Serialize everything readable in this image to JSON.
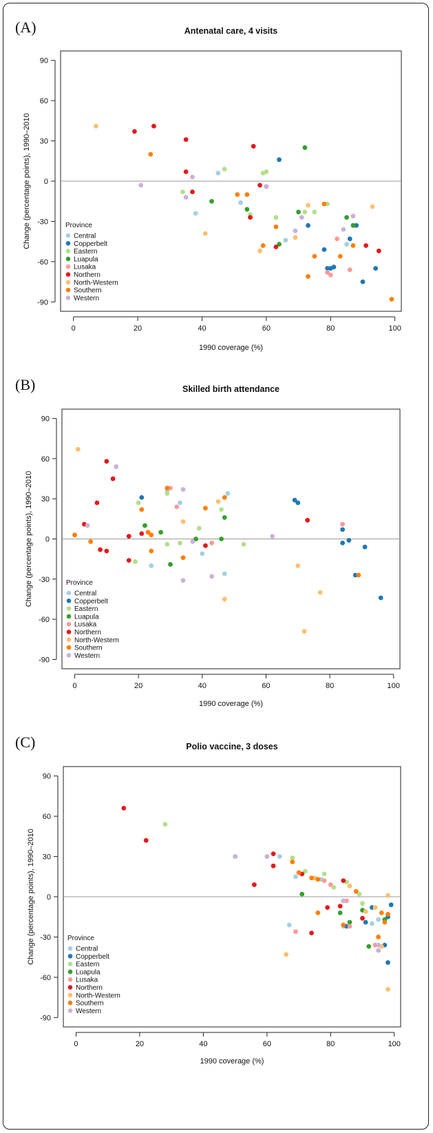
{
  "legend_title": "Province",
  "provinces": [
    {
      "name": "Central",
      "color": "#a6cee3"
    },
    {
      "name": "Copperbelt",
      "color": "#1f78b4"
    },
    {
      "name": "Eastern",
      "color": "#b2df8a"
    },
    {
      "name": "Luapula",
      "color": "#33a02c"
    },
    {
      "name": "Lusaka",
      "color": "#fb9a99"
    },
    {
      "name": "Northern",
      "color": "#e31a1c"
    },
    {
      "name": "North-Western",
      "color": "#fdbf6f"
    },
    {
      "name": "Southern",
      "color": "#ff7f00"
    },
    {
      "name": "Western",
      "color": "#cab2d6"
    }
  ],
  "chart_data": [
    {
      "type": "scatter",
      "panel": "(A)",
      "title": "Antenatal care, 4 visits",
      "xlabel": "1990 coverage (%)",
      "ylabel": "Change (percentage points), 1990–2010",
      "xlim": [
        -4,
        102
      ],
      "ylim": [
        -97,
        97
      ],
      "xticks": [
        0,
        20,
        40,
        60,
        80,
        100
      ],
      "yticks": [
        -90,
        -60,
        -30,
        0,
        30,
        60,
        90
      ],
      "legend": "bottom-left",
      "reference_line": 0,
      "series": [
        {
          "name": "Central",
          "points": [
            [
              38,
              -24
            ],
            [
              45,
              6
            ],
            [
              52,
              -16
            ],
            [
              66,
              -44
            ],
            [
              85,
              -47
            ]
          ]
        },
        {
          "name": "Copperbelt",
          "points": [
            [
              64,
              16
            ],
            [
              73,
              -33
            ],
            [
              78,
              -51
            ],
            [
              80,
              -65
            ],
            [
              79,
              -65
            ],
            [
              81,
              -64
            ],
            [
              86,
              -43
            ],
            [
              88,
              -33
            ],
            [
              90,
              -75
            ],
            [
              94,
              -65
            ]
          ]
        },
        {
          "name": "Eastern",
          "points": [
            [
              34,
              -8
            ],
            [
              47,
              9
            ],
            [
              55,
              -25
            ],
            [
              60,
              7
            ],
            [
              59,
              6
            ],
            [
              63,
              -27
            ],
            [
              72,
              -23
            ],
            [
              75,
              -23
            ],
            [
              79,
              -17
            ]
          ]
        },
        {
          "name": "Luapula",
          "points": [
            [
              43,
              -15
            ],
            [
              54,
              -21
            ],
            [
              64,
              -47
            ],
            [
              70,
              -23
            ],
            [
              72,
              25
            ],
            [
              85,
              -27
            ],
            [
              87,
              -33
            ]
          ]
        },
        {
          "name": "Lusaka",
          "points": [
            [
              82,
              -43
            ],
            [
              79,
              -68
            ],
            [
              80,
              -70
            ],
            [
              86,
              -66
            ]
          ]
        },
        {
          "name": "Northern",
          "points": [
            [
              19,
              37
            ],
            [
              25,
              41
            ],
            [
              35,
              7
            ],
            [
              35,
              31
            ],
            [
              37,
              -8
            ],
            [
              56,
              26
            ],
            [
              58,
              -3
            ],
            [
              60,
              -4
            ],
            [
              55,
              -27
            ],
            [
              63,
              -49
            ],
            [
              91,
              -48
            ],
            [
              95,
              -52
            ]
          ]
        },
        {
          "name": "North-Western",
          "points": [
            [
              7,
              41
            ],
            [
              41,
              -39
            ],
            [
              58,
              -52
            ],
            [
              69,
              -42
            ],
            [
              73,
              -18
            ],
            [
              93,
              -19
            ]
          ]
        },
        {
          "name": "Southern",
          "points": [
            [
              24,
              20
            ],
            [
              51,
              -10
            ],
            [
              54,
              -10
            ],
            [
              59,
              -48
            ],
            [
              63,
              -34
            ],
            [
              73,
              -71
            ],
            [
              75,
              -56
            ],
            [
              78,
              -17
            ],
            [
              83,
              -56
            ],
            [
              87,
              -48
            ],
            [
              99,
              -88
            ]
          ]
        },
        {
          "name": "Western",
          "points": [
            [
              21,
              -3
            ],
            [
              37,
              3
            ],
            [
              35,
              -12
            ],
            [
              60,
              -4
            ],
            [
              69,
              -37
            ],
            [
              71,
              -27
            ],
            [
              84,
              -36
            ],
            [
              87,
              -26
            ]
          ]
        }
      ]
    },
    {
      "type": "scatter",
      "panel": "(B)",
      "title": "Skilled birth attendance",
      "xlabel": "1990 coverage (%)",
      "ylabel": "Change (percentage points), 1990–2010",
      "xlim": [
        -4,
        102
      ],
      "ylim": [
        -97,
        97
      ],
      "xticks": [
        0,
        20,
        40,
        60,
        80,
        100
      ],
      "yticks": [
        -90,
        -60,
        -30,
        0,
        30,
        60,
        90
      ],
      "legend": "bottom-left",
      "reference_line": 0,
      "series": [
        {
          "name": "Central",
          "points": [
            [
              29,
              36
            ],
            [
              33,
              27
            ],
            [
              40,
              -11
            ],
            [
              48,
              34
            ],
            [
              47,
              -26
            ],
            [
              24,
              -20
            ]
          ]
        },
        {
          "name": "Copperbelt",
          "points": [
            [
              21,
              31
            ],
            [
              69,
              29
            ],
            [
              70,
              27
            ],
            [
              84,
              7
            ],
            [
              84,
              -3
            ],
            [
              86,
              -1
            ],
            [
              88,
              -27
            ],
            [
              91,
              -6
            ],
            [
              96,
              -44
            ]
          ]
        },
        {
          "name": "Eastern",
          "points": [
            [
              19,
              -17
            ],
            [
              20,
              27
            ],
            [
              29,
              34
            ],
            [
              29,
              -4
            ],
            [
              33,
              -3
            ],
            [
              39,
              8
            ],
            [
              46,
              22
            ],
            [
              53,
              -4
            ]
          ]
        },
        {
          "name": "Luapula",
          "points": [
            [
              22,
              10
            ],
            [
              27,
              5
            ],
            [
              30,
              -19
            ],
            [
              38,
              0
            ],
            [
              46,
              0
            ],
            [
              47,
              16
            ]
          ]
        },
        {
          "name": "Lusaka",
          "points": [
            [
              30,
              38
            ],
            [
              32,
              24
            ],
            [
              43,
              -3
            ],
            [
              84,
              11
            ]
          ]
        },
        {
          "name": "Northern",
          "points": [
            [
              3,
              11
            ],
            [
              7,
              27
            ],
            [
              8,
              -8
            ],
            [
              10,
              -9
            ],
            [
              10,
              58
            ],
            [
              12,
              45
            ],
            [
              17,
              2
            ],
            [
              17,
              -16
            ],
            [
              21,
              4
            ],
            [
              41,
              -5
            ],
            [
              73,
              14
            ]
          ]
        },
        {
          "name": "North-Western",
          "points": [
            [
              1,
              67
            ],
            [
              34,
              13
            ],
            [
              45,
              28
            ],
            [
              47,
              -45
            ],
            [
              70,
              -20
            ],
            [
              72,
              -69
            ],
            [
              77,
              -40
            ]
          ]
        },
        {
          "name": "Southern",
          "points": [
            [
              0,
              3
            ],
            [
              5,
              -2
            ],
            [
              21,
              22
            ],
            [
              23,
              5
            ],
            [
              24,
              3
            ],
            [
              24,
              -9
            ],
            [
              29,
              38
            ],
            [
              34,
              -14
            ],
            [
              41,
              23
            ],
            [
              47,
              31
            ],
            [
              89,
              -27
            ]
          ]
        },
        {
          "name": "Western",
          "points": [
            [
              4,
              10
            ],
            [
              13,
              54
            ],
            [
              34,
              37
            ],
            [
              34,
              -31
            ],
            [
              37,
              -2
            ],
            [
              43,
              -28
            ],
            [
              62,
              2
            ]
          ]
        }
      ]
    },
    {
      "type": "scatter",
      "panel": "(C)",
      "title": "Polio vaccine, 3 doses",
      "xlabel": "1990 coverage (%)",
      "ylabel": "Change (percentage points), 1990–2010",
      "xlim": [
        -4,
        102
      ],
      "ylim": [
        -97,
        97
      ],
      "xticks": [
        0,
        20,
        40,
        60,
        80,
        100
      ],
      "yticks": [
        -90,
        -60,
        -30,
        0,
        30,
        60,
        90
      ],
      "legend": "bottom-left",
      "reference_line": 0,
      "series": [
        {
          "name": "Central",
          "points": [
            [
              64,
              30
            ],
            [
              67,
              -21
            ],
            [
              69,
              15
            ],
            [
              77,
              13
            ],
            [
              84,
              -22
            ],
            [
              90,
              -10
            ],
            [
              93,
              -20
            ],
            [
              95,
              -17
            ]
          ]
        },
        {
          "name": "Copperbelt",
          "points": [
            [
              85,
              -22
            ],
            [
              91,
              -19
            ],
            [
              93,
              -8
            ],
            [
              97,
              -36
            ],
            [
              98,
              -49
            ],
            [
              98,
              -15
            ],
            [
              99,
              -6
            ]
          ]
        },
        {
          "name": "Eastern",
          "points": [
            [
              28,
              54
            ],
            [
              68,
              29
            ],
            [
              72,
              19
            ],
            [
              78,
              17
            ],
            [
              81,
              7
            ],
            [
              85,
              11
            ],
            [
              89,
              2
            ],
            [
              90,
              -5
            ]
          ]
        },
        {
          "name": "Luapula",
          "points": [
            [
              71,
              2
            ],
            [
              83,
              -12
            ],
            [
              86,
              -19
            ],
            [
              90,
              -10
            ],
            [
              92,
              -37
            ],
            [
              97,
              -17
            ]
          ]
        },
        {
          "name": "Lusaka",
          "points": [
            [
              69,
              -26
            ],
            [
              78,
              12
            ],
            [
              80,
              9
            ],
            [
              84,
              -3
            ],
            [
              85,
              -3
            ],
            [
              86,
              -22
            ],
            [
              94,
              -36
            ]
          ]
        },
        {
          "name": "Northern",
          "points": [
            [
              15,
              66
            ],
            [
              22,
              42
            ],
            [
              56,
              9
            ],
            [
              62,
              23
            ],
            [
              62,
              32
            ],
            [
              71,
              17
            ],
            [
              74,
              -27
            ],
            [
              79,
              -8
            ],
            [
              83,
              -7
            ],
            [
              84,
              12
            ],
            [
              90,
              -16
            ]
          ]
        },
        {
          "name": "North-Western",
          "points": [
            [
              66,
              -43
            ],
            [
              75,
              14
            ],
            [
              86,
              8
            ],
            [
              91,
              -11
            ],
            [
              94,
              -8
            ],
            [
              96,
              -37
            ],
            [
              98,
              1
            ],
            [
              98,
              -69
            ]
          ]
        },
        {
          "name": "Southern",
          "points": [
            [
              68,
              26
            ],
            [
              70,
              18
            ],
            [
              74,
              14
            ],
            [
              76,
              -12
            ],
            [
              76,
              13
            ],
            [
              84,
              -21
            ],
            [
              88,
              4
            ],
            [
              95,
              -30
            ],
            [
              96,
              -12
            ],
            [
              97,
              -19
            ],
            [
              98,
              -13
            ]
          ]
        },
        {
          "name": "Western",
          "points": [
            [
              50,
              30
            ],
            [
              60,
              30
            ],
            [
              84,
              -3
            ],
            [
              95,
              -40
            ],
            [
              95,
              -36
            ]
          ]
        }
      ]
    }
  ]
}
